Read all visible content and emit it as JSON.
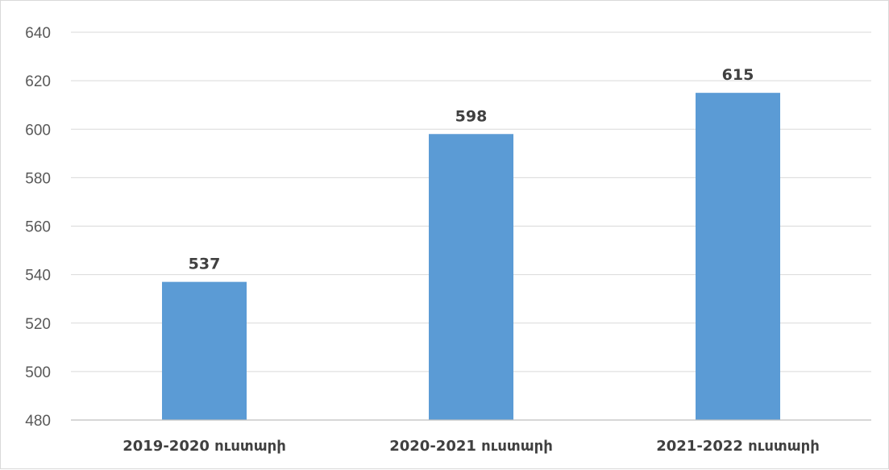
{
  "chart_data": {
    "type": "bar",
    "categories": [
      "2019-2020 ուստարի",
      "2020-2021 ուստարի",
      "2021-2022 ուստարի"
    ],
    "series": [
      {
        "values": [
          537,
          598,
          615
        ],
        "color": "#5b9bd5"
      }
    ],
    "data_labels": [
      "537",
      "598",
      "615"
    ],
    "ylim": [
      480,
      640
    ],
    "y_ticks": [
      480,
      500,
      520,
      540,
      560,
      580,
      600,
      620,
      640
    ],
    "grid": true,
    "legend": "none",
    "colors": {
      "bar": "#5b9bd5",
      "grid": "#d9d9d9",
      "axis": "#bfbfbf",
      "tick_text": "#595959",
      "label_text": "#404040"
    }
  }
}
